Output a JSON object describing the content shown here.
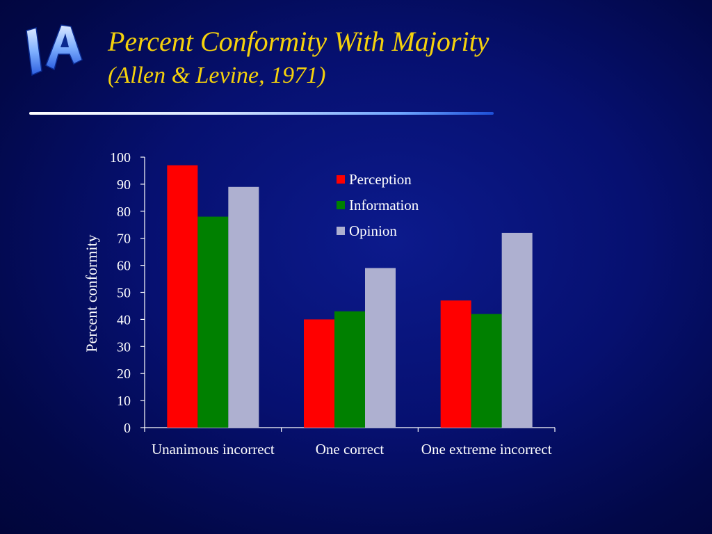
{
  "slide": {
    "title": "Percent Conformity With Majority",
    "subtitle": "(Allen & Levine, 1971)",
    "logo_text": "IA",
    "title_color": "#f5d10c"
  },
  "chart_data": {
    "type": "bar",
    "categories": [
      "Unanimous incorrect",
      "One correct",
      "One extreme incorrect"
    ],
    "series": [
      {
        "name": "Perception",
        "color": "#ff0000",
        "values": [
          97,
          40,
          47
        ]
      },
      {
        "name": "Information",
        "color": "#008000",
        "values": [
          78,
          43,
          42
        ]
      },
      {
        "name": "Opinion",
        "color": "#aeb0d0",
        "values": [
          89,
          59,
          72
        ]
      }
    ],
    "ylabel": "Percent conformity",
    "xlabel": "",
    "ylim": [
      0,
      100
    ],
    "yticks": [
      0,
      10,
      20,
      30,
      40,
      50,
      60,
      70,
      80,
      90,
      100
    ],
    "grid": false,
    "legend_position": "top-right"
  }
}
